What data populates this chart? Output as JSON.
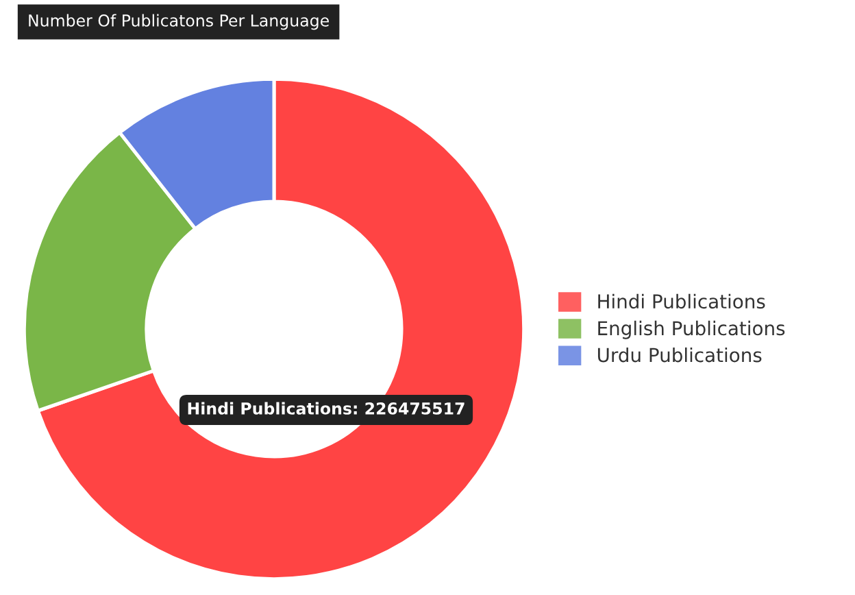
{
  "chart_data": {
    "type": "donut",
    "title": "Number Of Publicatons Per Language",
    "categories": [
      "Hindi Publications",
      "English Publications",
      "Urdu Publications"
    ],
    "values": [
      69.7,
      19.7,
      10.6
    ],
    "colors": [
      "#ff4444",
      "#7ab648",
      "#6381e0"
    ],
    "legend": "right",
    "annotations": [
      "Hindi Publications: 226475517"
    ]
  }
}
